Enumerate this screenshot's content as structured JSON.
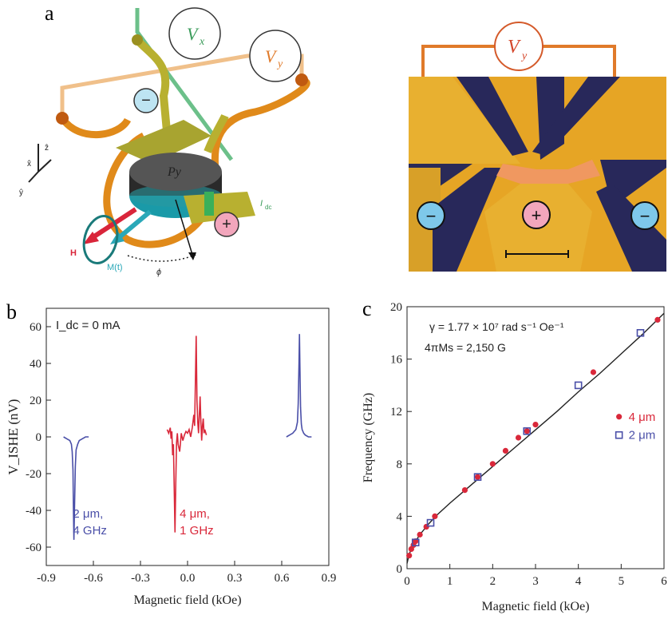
{
  "panel_labels": {
    "a": "a",
    "b": "b",
    "c": "c"
  },
  "panel_a": {
    "left": {
      "vx_label": "V",
      "vx_sub": "x",
      "vy_label": "V",
      "vy_sub": "y",
      "minus": "−",
      "plus": "+",
      "idc": "I",
      "idc_sub": "dc",
      "py_label": "Py",
      "h_label": "H",
      "m_label": "M(t)",
      "phi_label": "ϕ",
      "axis_x": "x̂",
      "axis_y": "ŷ",
      "axis_z": "ẑ",
      "colors": {
        "vx": "#3a9b5a",
        "vy": "#e07a2a",
        "h": "#d9253a",
        "m": "#2aa8b8",
        "gold": "#c9a227",
        "orange": "#e08a1a"
      }
    },
    "right": {
      "vy_label": "V",
      "vy_sub": "y",
      "left_symbol": "−",
      "center_symbol": "+",
      "right_symbol": "−"
    }
  },
  "chart_data": [
    {
      "type": "line",
      "panel": "b",
      "annotation": "I_dc = 0 mA",
      "xlabel": "Magnetic field (kOe)",
      "ylabel": "V_ISHE (nV)",
      "xlim": [
        -0.9,
        0.9
      ],
      "ylim": [
        -70,
        70
      ],
      "xticks": [
        -0.9,
        -0.6,
        -0.3,
        0.0,
        0.3,
        0.6,
        0.9
      ],
      "yticks": [
        -60,
        -40,
        -20,
        0,
        20,
        40,
        60
      ],
      "series": [
        {
          "label_lines": [
            "2 μm,",
            "4 GHz"
          ],
          "color": "#4a4fa8",
          "x": [
            -0.79,
            -0.77,
            -0.75,
            -0.74,
            -0.735,
            -0.73,
            -0.727,
            -0.724,
            -0.72,
            -0.715,
            -0.71,
            -0.7,
            -0.69,
            -0.67,
            -0.65,
            -0.63
          ],
          "y": [
            0,
            -1,
            -2,
            -4,
            -8,
            -18,
            -40,
            -56,
            -38,
            -16,
            -7,
            -4,
            -2,
            -1,
            0,
            0
          ]
        },
        {
          "color": "#4a4fa8",
          "x": [
            0.63,
            0.65,
            0.67,
            0.69,
            0.7,
            0.705,
            0.71,
            0.713,
            0.716,
            0.72,
            0.725,
            0.73,
            0.74,
            0.75,
            0.77,
            0.79
          ],
          "y": [
            0,
            1,
            2,
            4,
            8,
            18,
            40,
            56,
            38,
            16,
            7,
            4,
            2,
            1,
            0,
            0
          ]
        },
        {
          "label_lines": [
            "4 μm,",
            "1 GHz"
          ],
          "color": "#d9283a",
          "x": [
            -0.13,
            -0.12,
            -0.11,
            -0.105,
            -0.1,
            -0.095,
            -0.09,
            -0.085,
            -0.08,
            -0.075,
            -0.07,
            -0.065,
            -0.06,
            -0.05,
            -0.045,
            -0.04,
            -0.03,
            -0.02,
            -0.01,
            0.0,
            0.01,
            0.02,
            0.03,
            0.04,
            0.045,
            0.05,
            0.055,
            0.06,
            0.065,
            0.07,
            0.075,
            0.08,
            0.085,
            0.09,
            0.095,
            0.1,
            0.105,
            0.11,
            0.12
          ],
          "y": [
            4,
            2,
            5,
            -1,
            3,
            -10,
            -4,
            -28,
            -52,
            -25,
            -3,
            2,
            -4,
            -8,
            -3,
            2,
            -2,
            1,
            3,
            2,
            4,
            0,
            5,
            12,
            6,
            30,
            55,
            20,
            8,
            2,
            12,
            22,
            8,
            -2,
            6,
            10,
            2,
            4,
            1
          ]
        }
      ]
    },
    {
      "type": "scatter",
      "panel": "c",
      "annotation_lines": [
        "γ = 1.77 × 10⁷ rad s⁻¹ Oe⁻¹",
        "4πMs = 2,150 G"
      ],
      "xlabel": "Magnetic field (kOe)",
      "ylabel": "Frequency (GHz)",
      "xlim": [
        0,
        6
      ],
      "ylim": [
        0,
        20
      ],
      "xticks": [
        0,
        1,
        2,
        3,
        4,
        5,
        6
      ],
      "yticks": [
        0,
        4,
        8,
        12,
        16,
        20
      ],
      "fit": {
        "color": "#222222",
        "x": [
          0,
          0.05,
          0.1,
          0.2,
          0.3,
          0.5,
          0.7,
          1.0,
          1.5,
          2.0,
          2.5,
          3.0,
          3.5,
          4.0,
          4.5,
          5.0,
          5.5,
          6.0
        ],
        "y": [
          0.4,
          1.1,
          1.5,
          2.1,
          2.6,
          3.4,
          4.1,
          5.0,
          6.4,
          7.8,
          9.2,
          10.6,
          12.0,
          13.5,
          14.9,
          16.4,
          17.9,
          19.5
        ]
      },
      "series": [
        {
          "name": "4 μm",
          "marker": "circle",
          "color": "#d9283a",
          "x": [
            0.05,
            0.1,
            0.15,
            0.2,
            0.3,
            0.45,
            0.65,
            1.35,
            1.65,
            2.0,
            2.3,
            2.6,
            2.8,
            3.0,
            4.35,
            5.85
          ],
          "y": [
            1.0,
            1.5,
            1.8,
            2.1,
            2.6,
            3.2,
            4.0,
            6.0,
            7.0,
            8.0,
            9.0,
            10.0,
            10.5,
            11.0,
            15.0,
            19.0
          ]
        },
        {
          "name": "2 μm",
          "marker": "square",
          "color": "#4a4fa8",
          "x": [
            0.2,
            0.55,
            1.65,
            2.8,
            4.0,
            5.45
          ],
          "y": [
            2.0,
            3.5,
            7.0,
            10.5,
            14.0,
            18.0
          ]
        }
      ]
    }
  ]
}
